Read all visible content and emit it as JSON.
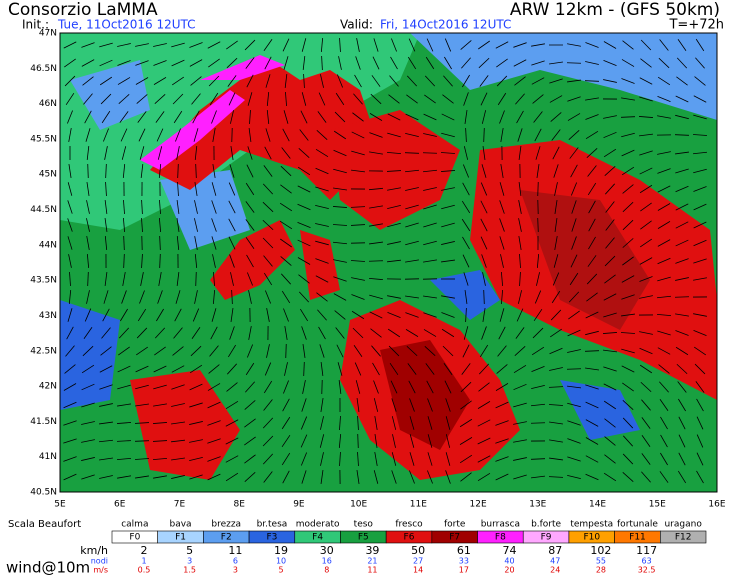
{
  "header": {
    "title": "Consorzio LaMMA",
    "model": "ARW 12km - (GFS 50km)",
    "init_label": "Init.:",
    "init": "Tue, 11Oct2016 12UTC",
    "valid_label": "Valid:",
    "valid": "Fri, 14Oct2016 12UTC",
    "step": "T=+72h"
  },
  "map": {
    "lat_labels": [
      "47N",
      "46.5N",
      "46N",
      "45.5N",
      "45N",
      "44.5N",
      "44N",
      "43.5N",
      "43N",
      "42.5N",
      "42N",
      "41.5N",
      "41N",
      "40.5N"
    ],
    "lon_labels": [
      "5E",
      "6E",
      "7E",
      "8E",
      "9E",
      "10E",
      "11E",
      "12E",
      "13E",
      "14E",
      "15E",
      "16E"
    ]
  },
  "legend": {
    "title": "Scala Beaufort",
    "classes": [
      {
        "name": "calma",
        "code": "F0",
        "color": "#ffffff"
      },
      {
        "name": "bava",
        "code": "F1",
        "color": "#a8d4ff"
      },
      {
        "name": "brezza",
        "code": "F2",
        "color": "#5c9ef0"
      },
      {
        "name": "br.tesa",
        "code": "F3",
        "color": "#2a64e0"
      },
      {
        "name": "moderato",
        "code": "F4",
        "color": "#30c878"
      },
      {
        "name": "teso",
        "code": "F5",
        "color": "#18a040"
      },
      {
        "name": "fresco",
        "code": "F6",
        "color": "#e01010"
      },
      {
        "name": "forte",
        "code": "F7",
        "color": "#a00000"
      },
      {
        "name": "burrasca",
        "code": "F8",
        "color": "#ff20ff"
      },
      {
        "name": "b.forte",
        "code": "F9",
        "color": "#ffa8ff"
      },
      {
        "name": "tempesta",
        "code": "F10",
        "color": "#ffa000"
      },
      {
        "name": "fortunale",
        "code": "F11",
        "color": "#ff7800"
      },
      {
        "name": "uragano",
        "code": "F12",
        "color": "#b0b0b0"
      }
    ],
    "units": [
      "km/h",
      "nodi",
      "m/s"
    ],
    "kmh": [
      2,
      5,
      11,
      19,
      30,
      39,
      50,
      61,
      74,
      87,
      102,
      117
    ],
    "knots": [
      1,
      3,
      6,
      10,
      16,
      21,
      27,
      33,
      40,
      47,
      55,
      63
    ],
    "ms": [
      0.5,
      1.5,
      3,
      5,
      8,
      11,
      14,
      17,
      20,
      24,
      28,
      32.5
    ]
  },
  "footer": "wind@10m"
}
